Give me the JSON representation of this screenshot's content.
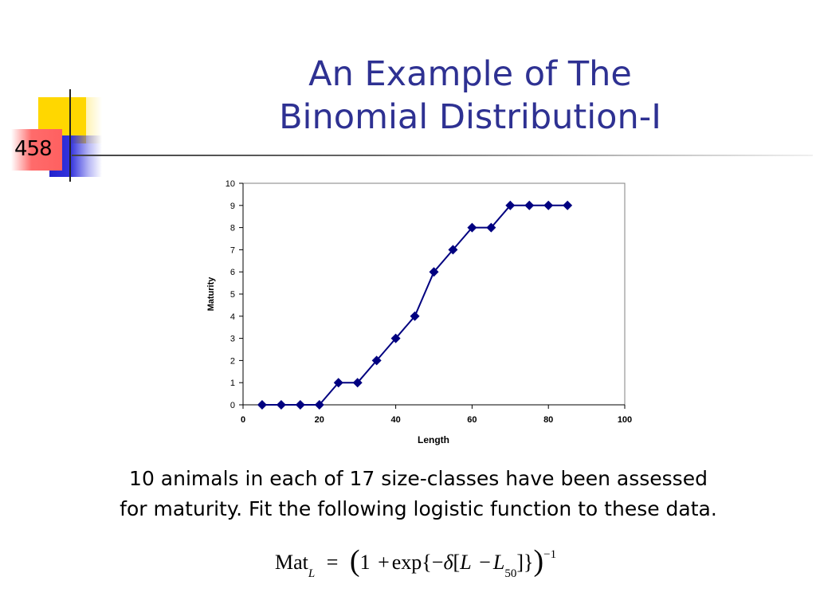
{
  "slide": {
    "number": "458",
    "title_line1": "An Example of The",
    "title_line2": "Binomial Distribution-I",
    "caption_line1": "10 animals in each of 17 size-classes have been assessed",
    "caption_line2": "for maturity. Fit the following logistic function to these data.",
    "accent_colors": {
      "title": "#2e3192",
      "yellow": "#ffd700",
      "blue": "#2222cc",
      "red": "#ff6060"
    }
  },
  "formula": {
    "lhs": "Mat",
    "lhs_sub": "L",
    "eq": "=",
    "one": "1",
    "plus": "+",
    "exp": "exp{",
    "minus": "−",
    "delta": "δ",
    "bracket_open": "[",
    "L": "L",
    "minus2": "−",
    "L50": "L",
    "L50_sub": "50",
    "close": "]}",
    "power": "−1"
  },
  "chart_data": {
    "type": "line",
    "title": "",
    "xlabel": "Length",
    "ylabel": "Maturity",
    "xlim": [
      0,
      100
    ],
    "ylim": [
      0,
      10
    ],
    "xticks": [
      0,
      20,
      40,
      60,
      80,
      100
    ],
    "yticks": [
      0,
      1,
      2,
      3,
      4,
      5,
      6,
      7,
      8,
      9,
      10
    ],
    "grid": false,
    "legend": false,
    "marker": "diamond",
    "color": "#000080",
    "series": [
      {
        "x": [
          5,
          10,
          15,
          20,
          25,
          30,
          35,
          40,
          45,
          50,
          55,
          60,
          65,
          70,
          75,
          80,
          85
        ],
        "y": [
          0,
          0,
          0,
          0,
          1,
          1,
          2,
          3,
          4,
          6,
          7,
          8,
          8,
          9,
          9,
          9,
          9
        ]
      }
    ]
  }
}
